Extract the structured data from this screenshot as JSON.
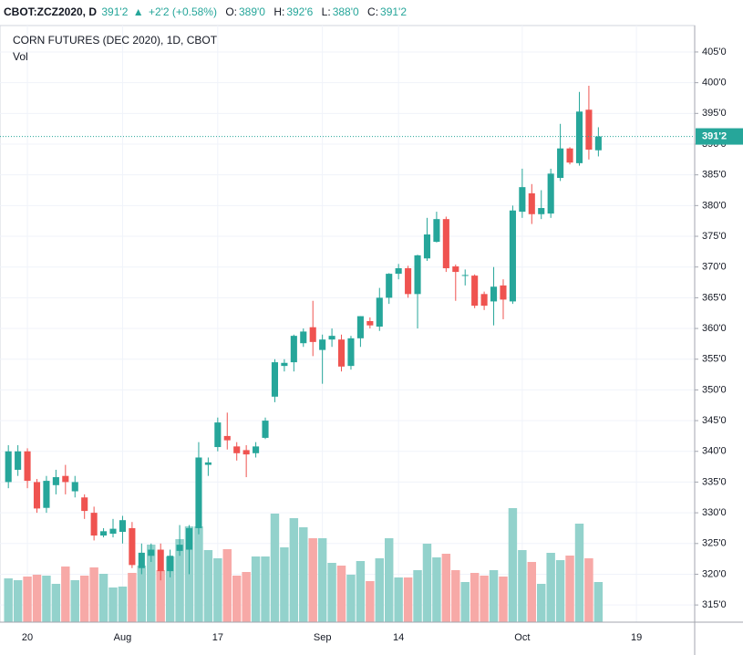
{
  "header": {
    "symbol": "CBOT:ZCZ2020, D",
    "last": "391'2",
    "change": "+2'2 (+0.58%)",
    "open_label": "O:",
    "open": "389'0",
    "high_label": "H:",
    "high": "392'6",
    "low_label": "L:",
    "low": "388'0",
    "close_label": "C:",
    "close": "391'2"
  },
  "chart_data": {
    "type": "candlestick",
    "title": "CORN FUTURES (DEC 2020), 1D, CBOT",
    "volume_title": "Vol",
    "categories": [
      null,
      null,
      "20",
      null,
      null,
      null,
      null,
      null,
      null,
      null,
      null,
      null,
      "Aug",
      null,
      null,
      null,
      null,
      null,
      null,
      null,
      null,
      null,
      "17",
      null,
      null,
      null,
      null,
      null,
      null,
      null,
      null,
      null,
      null,
      "Sep",
      null,
      null,
      null,
      null,
      null,
      null,
      null,
      "14",
      null,
      null,
      null,
      null,
      null,
      null,
      null,
      null,
      null,
      null,
      null,
      null,
      "Oct",
      null,
      null,
      null,
      null,
      null,
      null,
      null,
      null,
      null,
      null,
      null,
      "19",
      null,
      null,
      null,
      null,
      null,
      null
    ],
    "open": [
      335,
      337,
      340,
      335,
      330.8,
      334.5,
      336,
      333.5,
      332.5,
      330,
      326.3,
      326.6,
      326.9,
      327.5,
      321,
      323,
      324,
      320.5,
      323.8,
      324,
      327.5,
      337.8,
      340.7,
      342.5,
      340.8,
      340.2,
      339.7,
      342.2,
      348.9,
      353.9,
      354.5,
      357.6,
      360.2,
      356.5,
      358.2,
      358.2,
      353.9,
      358.4,
      361.2,
      360.3,
      365,
      368.9,
      369.8,
      365.6,
      371.4,
      374.1,
      377.8,
      370.1,
      368.6,
      368.6,
      365.6,
      364.4,
      367,
      364.4,
      379,
      382,
      378.6,
      378.7,
      384.5,
      389.3,
      386.9,
      395.6,
      389,
      null,
      null,
      null,
      null,
      null,
      null,
      null,
      null,
      null,
      null
    ],
    "high": [
      341,
      341,
      340.5,
      335.5,
      336,
      337,
      337.8,
      336,
      333,
      331,
      327.5,
      329,
      329.5,
      328.5,
      325,
      325,
      325,
      324,
      328,
      328,
      341.5,
      339,
      345.5,
      346.3,
      341.5,
      341,
      341.5,
      345.5,
      355,
      355,
      359,
      360,
      364.5,
      359,
      360,
      359,
      358.8,
      362,
      361.8,
      366.6,
      369,
      370.5,
      370.2,
      372,
      378,
      379,
      378.2,
      370.4,
      369.6,
      368.8,
      366,
      370,
      368,
      380,
      386,
      383.5,
      382.5,
      386,
      393.3,
      389.5,
      398.5,
      399.5,
      392.75,
      null,
      null,
      null,
      null,
      null,
      null,
      null,
      null,
      null,
      null
    ],
    "low": [
      334,
      336,
      334,
      330,
      330,
      333,
      333,
      332.5,
      329,
      325.5,
      326,
      326,
      325,
      321,
      320,
      322,
      319,
      319.5,
      323,
      320,
      326.5,
      336,
      340,
      340.3,
      338.5,
      335.8,
      339,
      342,
      348,
      353,
      353,
      357,
      355.5,
      351,
      357,
      353,
      353.3,
      357,
      360,
      359.6,
      364,
      368,
      365,
      360,
      371,
      374,
      369.2,
      364.5,
      367,
      363.3,
      363,
      360.5,
      361.5,
      364,
      378,
      377,
      377.8,
      378,
      384,
      386.7,
      386.5,
      387.5,
      388,
      null,
      null,
      null,
      null,
      null,
      null,
      null,
      null,
      null,
      null
    ],
    "close": [
      340,
      340,
      335.2,
      330.7,
      335.2,
      335.8,
      335,
      335,
      330.3,
      326.3,
      327,
      327.4,
      328.8,
      321.5,
      323.5,
      324,
      320.5,
      323,
      324.8,
      327.5,
      339,
      338.2,
      344.7,
      341.8,
      339.7,
      339.5,
      340.8,
      345,
      354.5,
      354.4,
      358.8,
      359.5,
      357.8,
      358.2,
      358.8,
      353.8,
      358.4,
      362,
      360.5,
      365,
      368.9,
      369.8,
      365.6,
      371.9,
      375.3,
      377.8,
      369.8,
      369.2,
      368.7,
      363.7,
      363.7,
      366.8,
      364.7,
      379.2,
      383,
      378.6,
      379.6,
      385.2,
      389.3,
      387,
      395.3,
      389.1,
      391.25,
      null,
      null,
      null,
      null,
      null,
      null,
      null,
      null,
      null,
      null
    ],
    "volume": [
      48,
      46,
      50,
      52,
      51,
      42,
      61,
      46,
      51,
      60,
      53,
      38,
      39,
      54,
      62,
      85,
      57,
      72,
      91,
      105,
      105,
      79,
      70,
      80,
      51,
      55,
      72,
      72,
      119,
      82,
      114,
      104,
      92,
      92,
      65,
      62,
      52,
      67,
      45,
      70,
      92,
      49,
      49,
      57,
      86,
      71,
      75,
      57,
      44,
      54,
      51,
      57,
      50,
      125,
      79,
      66,
      42,
      76,
      68,
      73,
      108,
      70,
      44,
      null,
      null,
      null,
      null,
      null,
      null,
      null,
      null,
      null,
      null
    ],
    "volume_lim": [
      0,
      654
    ],
    "up_color": "#26a69a",
    "down_color": "#ef5350",
    "volume_up_color": "#93d2cc",
    "volume_down_color": "#f7a9a7",
    "last_price": {
      "value": 391.25,
      "label": "391'2"
    },
    "ylim": [
      312.2,
      409.3
    ],
    "yticks": [
      {
        "value": 315,
        "label": "315'0"
      },
      {
        "value": 320,
        "label": "320'0"
      },
      {
        "value": 325,
        "label": "325'0"
      },
      {
        "value": 330,
        "label": "330'0"
      },
      {
        "value": 335,
        "label": "335'0"
      },
      {
        "value": 340,
        "label": "340'0"
      },
      {
        "value": 345,
        "label": "345'0"
      },
      {
        "value": 350,
        "label": "350'0"
      },
      {
        "value": 355,
        "label": "355'0"
      },
      {
        "value": 360,
        "label": "360'0"
      },
      {
        "value": 365,
        "label": "365'0"
      },
      {
        "value": 370,
        "label": "370'0"
      },
      {
        "value": 375,
        "label": "375'0"
      },
      {
        "value": 380,
        "label": "380'0"
      },
      {
        "value": 385,
        "label": "385'0"
      },
      {
        "value": 390,
        "label": "390'0"
      },
      {
        "value": 395,
        "label": "395'0"
      },
      {
        "value": 400,
        "label": "400'0"
      },
      {
        "value": 405,
        "label": "405'0"
      }
    ],
    "grid": true
  }
}
